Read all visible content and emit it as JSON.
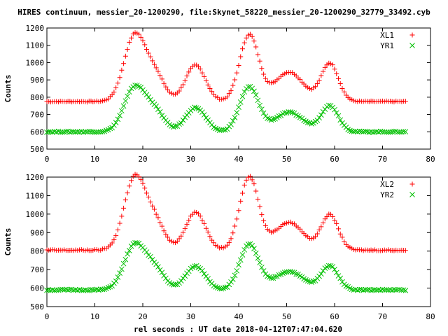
{
  "page": {
    "title": "HIRES continuum, messier_20-1200290, file:Skynet_58220_messier_20-1200290_32779_33492.cyb",
    "xlabel": "rel seconds : UT date 2018-04-12T07:47:04.620"
  },
  "colors": {
    "red": "#ff0000",
    "green": "#00c000",
    "frame": "#000000"
  },
  "chart_data": [
    {
      "type": "scatter",
      "title": "HIRES continuum, messier_20-1200290, file:Skynet_58220_messier_20-1200290_32779_33492.cyb",
      "xlabel": "",
      "ylabel": "Counts",
      "xlim": [
        0,
        80
      ],
      "ylim": [
        500,
        1200
      ],
      "xticks": [
        "0",
        "10",
        "20",
        "30",
        "40",
        "50",
        "60",
        "70",
        "80"
      ],
      "yticks": [
        "500",
        "600",
        "700",
        "800",
        "900",
        "1000",
        "1100",
        "1200"
      ],
      "legend": "top-right",
      "series": [
        {
          "name": "XL1",
          "color": "#ff0000",
          "marker": "plus",
          "baseline": 775,
          "peaks": [
            [
              18.3,
              380,
              2.2
            ],
            [
              22.5,
              150,
              2.0
            ],
            [
              31.0,
              210,
              2.1
            ],
            [
              42.2,
              385,
              2.0
            ],
            [
              50.5,
              170,
              3.0
            ],
            [
              59.0,
              220,
              1.8
            ]
          ],
          "x_start": 0,
          "x_end": 75,
          "x_step": 0.4
        },
        {
          "name": "YR1",
          "color": "#00c000",
          "marker": "cross",
          "baseline": 600,
          "peaks": [
            [
              18.3,
              255,
              2.2
            ],
            [
              22.5,
              115,
              2.0
            ],
            [
              31.0,
              140,
              2.1
            ],
            [
              42.2,
              258,
              2.0
            ],
            [
              50.5,
              112,
              3.0
            ],
            [
              59.0,
              150,
              1.8
            ]
          ],
          "x_start": 0,
          "x_end": 75,
          "x_step": 0.4
        }
      ]
    },
    {
      "type": "scatter",
      "title": "",
      "xlabel": "rel seconds : UT date 2018-04-12T07:47:04.620",
      "ylabel": "Counts",
      "xlim": [
        0,
        80
      ],
      "ylim": [
        500,
        1200
      ],
      "xticks": [
        "0",
        "10",
        "20",
        "30",
        "40",
        "50",
        "60",
        "70",
        "80"
      ],
      "yticks": [
        "500",
        "600",
        "700",
        "800",
        "900",
        "1000",
        "1100",
        "1200"
      ],
      "legend": "top-right",
      "series": [
        {
          "name": "XL2",
          "color": "#ff0000",
          "marker": "plus",
          "baseline": 805,
          "peaks": [
            [
              18.3,
              390,
              2.2
            ],
            [
              22.5,
              150,
              2.0
            ],
            [
              31.0,
              205,
              2.1
            ],
            [
              42.2,
              395,
              2.0
            ],
            [
              50.5,
              150,
              3.0
            ],
            [
              59.0,
              190,
              1.8
            ]
          ],
          "x_start": 0,
          "x_end": 75,
          "x_step": 0.4
        },
        {
          "name": "YR2",
          "color": "#00c000",
          "marker": "cross",
          "baseline": 590,
          "peaks": [
            [
              18.3,
              240,
              2.2
            ],
            [
              22.5,
              110,
              2.0
            ],
            [
              31.0,
              128,
              2.1
            ],
            [
              42.2,
              245,
              2.0
            ],
            [
              50.5,
              100,
              3.0
            ],
            [
              59.0,
              130,
              1.8
            ]
          ],
          "x_start": 0,
          "x_end": 75,
          "x_step": 0.4
        }
      ]
    }
  ]
}
